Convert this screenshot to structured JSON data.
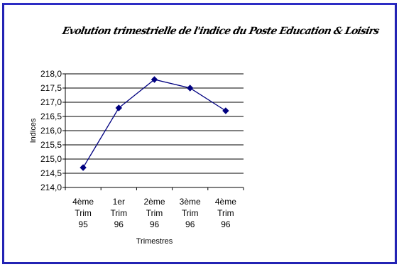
{
  "chart_data": {
    "type": "line",
    "title": "Evolution trimestrielle de l'indice du Poste Education & Loisirs",
    "xlabel": "Trimestres",
    "ylabel": "Indices",
    "categories": [
      [
        "4ème",
        "Trim",
        "95"
      ],
      [
        "1er",
        "Trim",
        "96"
      ],
      [
        "2ème",
        "Trim",
        "96"
      ],
      [
        "3ème",
        "Trim",
        "96"
      ],
      [
        "4ème",
        "Trim",
        "96"
      ]
    ],
    "series": [
      {
        "values": [
          214.7,
          216.8,
          217.8,
          217.5,
          216.7
        ]
      }
    ],
    "ylim": [
      214.0,
      218.0
    ],
    "yticks": [
      "214,0",
      "214,5",
      "215,0",
      "215,5",
      "216,0",
      "216,5",
      "217,0",
      "217,5",
      "218,0"
    ],
    "grid": true,
    "line_color": "#000080"
  }
}
